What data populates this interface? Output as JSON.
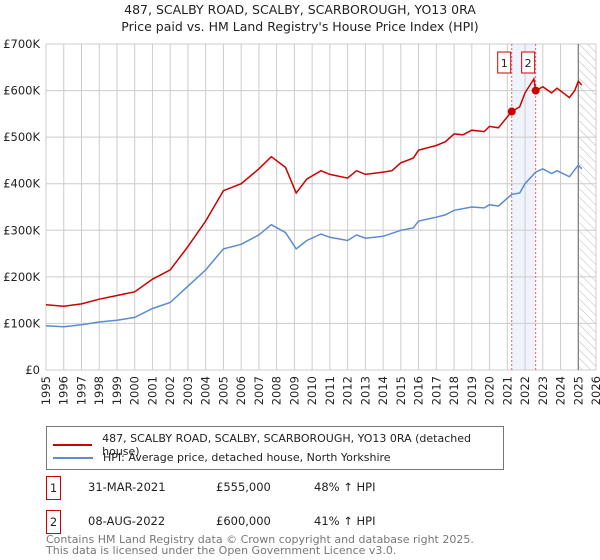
{
  "title_line1": "487, SCALBY ROAD, SCALBY, SCARBOROUGH, YO13 0RA",
  "title_line2": "Price paid vs. HM Land Registry's House Price Index (HPI)",
  "chart_data": {
    "type": "line",
    "title": "487, SCALBY ROAD, SCALBY, SCARBOROUGH, YO13 0RA — Price paid vs. HM Land Registry's House Price Index (HPI)",
    "xlim": [
      1995,
      2026
    ],
    "ylim": [
      0,
      700000
    ],
    "x_ticks": [
      "1995",
      "1996",
      "1997",
      "1998",
      "1999",
      "2000",
      "2001",
      "2002",
      "2003",
      "2004",
      "2005",
      "2006",
      "2007",
      "2008",
      "2009",
      "2010",
      "2011",
      "2012",
      "2013",
      "2014",
      "2015",
      "2016",
      "2017",
      "2018",
      "2019",
      "2020",
      "2021",
      "2022",
      "2023",
      "2024",
      "2025",
      "2026"
    ],
    "y_ticks": [
      {
        "v": 0,
        "label": "£0"
      },
      {
        "v": 100000,
        "label": "£100K"
      },
      {
        "v": 200000,
        "label": "£200K"
      },
      {
        "v": 300000,
        "label": "£300K"
      },
      {
        "v": 400000,
        "label": "£400K"
      },
      {
        "v": 500000,
        "label": "£500K"
      },
      {
        "v": 600000,
        "label": "£600K"
      },
      {
        "v": 700000,
        "label": "£700K"
      }
    ],
    "grid": true,
    "series": [
      {
        "name": "487, SCALBY ROAD, SCALBY, SCARBOROUGH, YO13 0RA (detached house)",
        "color": "#cc0000",
        "x": [
          1995,
          1996,
          1997,
          1998,
          1999,
          2000,
          2001,
          2002,
          2003,
          2004,
          2005,
          2006,
          2007,
          2007.7,
          2008.5,
          2009.1,
          2009.7,
          2010.5,
          2011,
          2012,
          2012.5,
          2013,
          2014,
          2014.5,
          2015,
          2015.7,
          2016,
          2017,
          2017.5,
          2018,
          2018.5,
          2019,
          2019.7,
          2020,
          2020.5,
          2021.25,
          2021.7,
          2022,
          2022.5,
          2022.6,
          2023,
          2023.5,
          2023.8,
          2024.5,
          2024.8,
          2025,
          2025.2
        ],
        "y": [
          140000,
          137000,
          142000,
          152000,
          160000,
          168000,
          195000,
          215000,
          265000,
          320000,
          385000,
          400000,
          432000,
          458000,
          435000,
          380000,
          410000,
          428000,
          420000,
          412000,
          428000,
          420000,
          425000,
          428000,
          445000,
          455000,
          472000,
          482000,
          490000,
          507000,
          505000,
          515000,
          512000,
          523000,
          520000,
          555000,
          565000,
          595000,
          625000,
          600000,
          608000,
          595000,
          605000,
          585000,
          600000,
          620000,
          612000
        ]
      },
      {
        "name": "HPI: Average price, detached house, North Yorkshire",
        "color": "#5b8bd0",
        "x": [
          1995,
          1996,
          1997,
          1998,
          1999,
          2000,
          2001,
          2002,
          2003,
          2004,
          2005,
          2006,
          2007,
          2007.7,
          2008.5,
          2009.1,
          2009.7,
          2010.5,
          2011,
          2012,
          2012.5,
          2013,
          2014,
          2015,
          2015.7,
          2016,
          2017,
          2017.5,
          2018,
          2019,
          2019.7,
          2020,
          2020.5,
          2021.25,
          2021.7,
          2022,
          2022.6,
          2023,
          2023.5,
          2023.8,
          2024.5,
          2025,
          2025.2
        ],
        "y": [
          95000,
          93000,
          97000,
          103000,
          107000,
          113000,
          132000,
          145000,
          180000,
          215000,
          260000,
          270000,
          290000,
          312000,
          295000,
          260000,
          278000,
          292000,
          285000,
          278000,
          290000,
          283000,
          287000,
          300000,
          305000,
          320000,
          328000,
          333000,
          343000,
          350000,
          348000,
          355000,
          352000,
          377000,
          380000,
          400000,
          425000,
          432000,
          422000,
          428000,
          415000,
          440000,
          432000
        ]
      }
    ],
    "sales": [
      {
        "label": "1",
        "x": 2021.25,
        "y": 555000
      },
      {
        "label": "2",
        "x": 2022.6,
        "y": 600000
      }
    ],
    "highlight_range": [
      2021.25,
      2022.6
    ],
    "forecast_hatch_from": 2025.0
  },
  "legend": {
    "items": [
      {
        "label": "487, SCALBY ROAD, SCALBY, SCARBOROUGH, YO13 0RA (detached house)",
        "color": "#cc0000"
      },
      {
        "label": "HPI: Average price, detached house, North Yorkshire",
        "color": "#5b8bd0"
      }
    ]
  },
  "table": [
    {
      "num": "1",
      "date": "31-MAR-2021",
      "price": "£555,000",
      "hpi": "48% ↑ HPI"
    },
    {
      "num": "2",
      "date": "08-AUG-2022",
      "price": "£600,000",
      "hpi": "41% ↑ HPI"
    }
  ],
  "footer": {
    "line1": "Contains HM Land Registry data © Crown copyright and database right 2025.",
    "line2": "This data is licensed under the Open Government Licence v3.0."
  }
}
